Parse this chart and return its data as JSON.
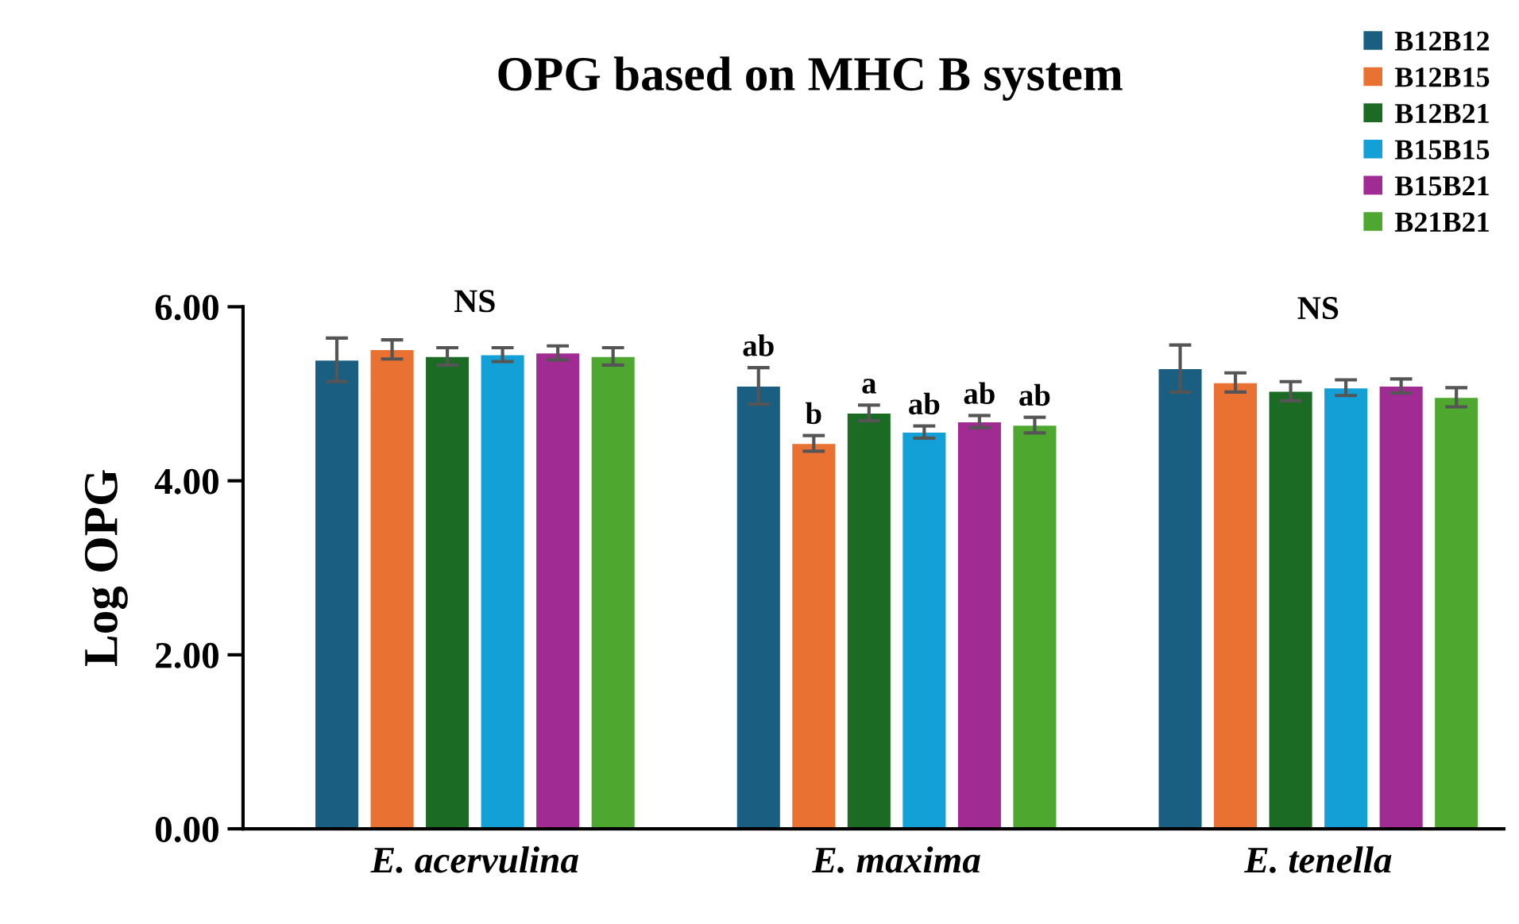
{
  "chart_data": {
    "type": "bar",
    "title": "OPG based on MHC B system",
    "ylabel": "Log OPG",
    "categories": [
      "E. acervulina",
      "E. maxima",
      "E. tenella"
    ],
    "series": [
      {
        "name": "B12B12",
        "color": "#1a5e82",
        "values": [
          5.39,
          5.09,
          5.29
        ],
        "errors": [
          0.25,
          0.21,
          0.27
        ],
        "value_labels": [
          null,
          "ab",
          null
        ]
      },
      {
        "name": "B12B15",
        "color": "#e97132",
        "values": [
          5.51,
          4.43,
          5.13
        ],
        "errors": [
          0.11,
          0.09,
          0.11
        ],
        "value_labels": [
          null,
          "b",
          null
        ]
      },
      {
        "name": "B12B21",
        "color": "#1b6b24",
        "values": [
          5.43,
          4.78,
          5.03
        ],
        "errors": [
          0.1,
          0.09,
          0.11
        ],
        "value_labels": [
          null,
          "a",
          null
        ]
      },
      {
        "name": "B15B15",
        "color": "#12a0d7",
        "values": [
          5.45,
          4.56,
          5.07
        ],
        "errors": [
          0.08,
          0.07,
          0.09
        ],
        "value_labels": [
          null,
          "ab",
          null
        ]
      },
      {
        "name": "B15B21",
        "color": "#a02b93",
        "values": [
          5.47,
          4.68,
          5.09
        ],
        "errors": [
          0.08,
          0.07,
          0.08
        ],
        "value_labels": [
          null,
          "ab",
          null
        ]
      },
      {
        "name": "B21B21",
        "color": "#4ea72e",
        "values": [
          5.43,
          4.64,
          4.96
        ],
        "errors": [
          0.1,
          0.09,
          0.11
        ],
        "value_labels": [
          null,
          "ab",
          null
        ]
      }
    ],
    "annotations": [
      "NS",
      "NS"
    ],
    "ylim": [
      0,
      6
    ],
    "yticks": [
      {
        "value": 0,
        "label": "0.00"
      },
      {
        "value": 2,
        "label": "2.00"
      },
      {
        "value": 4,
        "label": "4.00"
      },
      {
        "value": 6,
        "label": "6.00"
      }
    ],
    "grid": false,
    "legend": "top right"
  }
}
